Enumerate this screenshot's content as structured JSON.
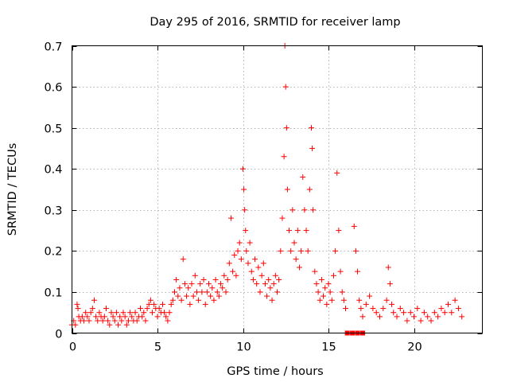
{
  "chart_data": {
    "type": "scatter",
    "title": "Day 295 of 2016, SRMTID for receiver lamp",
    "xlabel": "GPS time / hours",
    "ylabel": "SRMTID / TECUs",
    "xlim": [
      0,
      24
    ],
    "ylim": [
      0,
      0.7
    ],
    "xticks": [
      0,
      5,
      10,
      15,
      20
    ],
    "yticks": [
      0,
      0.1,
      0.2,
      0.3,
      0.4,
      0.5,
      0.6,
      0.7
    ],
    "xtick_labels": [
      "0",
      "5",
      "10",
      "15",
      "20"
    ],
    "ytick_labels": [
      "0",
      "0.1",
      "0.2",
      "0.3",
      "0.4",
      "0.5",
      "0.6",
      "0.7"
    ],
    "grid": true,
    "marker": "+",
    "color": "#ff0000",
    "series": [
      {
        "name": "SRMTID",
        "points": [
          [
            0.0,
            0.02
          ],
          [
            0.1,
            0.03
          ],
          [
            0.2,
            0.02
          ],
          [
            0.3,
            0.07
          ],
          [
            0.35,
            0.06
          ],
          [
            0.4,
            0.04
          ],
          [
            0.5,
            0.03
          ],
          [
            0.6,
            0.04
          ],
          [
            0.7,
            0.03
          ],
          [
            0.8,
            0.05
          ],
          [
            0.9,
            0.04
          ],
          [
            1.0,
            0.03
          ],
          [
            1.1,
            0.05
          ],
          [
            1.2,
            0.06
          ],
          [
            1.3,
            0.08
          ],
          [
            1.4,
            0.04
          ],
          [
            1.5,
            0.03
          ],
          [
            1.6,
            0.05
          ],
          [
            1.7,
            0.04
          ],
          [
            1.8,
            0.03
          ],
          [
            1.9,
            0.04
          ],
          [
            2.0,
            0.06
          ],
          [
            2.1,
            0.03
          ],
          [
            2.2,
            0.02
          ],
          [
            2.3,
            0.05
          ],
          [
            2.4,
            0.04
          ],
          [
            2.5,
            0.03
          ],
          [
            2.6,
            0.05
          ],
          [
            2.7,
            0.02
          ],
          [
            2.8,
            0.04
          ],
          [
            2.9,
            0.03
          ],
          [
            3.0,
            0.05
          ],
          [
            3.1,
            0.04
          ],
          [
            3.2,
            0.02
          ],
          [
            3.3,
            0.03
          ],
          [
            3.4,
            0.05
          ],
          [
            3.5,
            0.04
          ],
          [
            3.6,
            0.03
          ],
          [
            3.7,
            0.05
          ],
          [
            3.8,
            0.03
          ],
          [
            3.9,
            0.04
          ],
          [
            4.0,
            0.06
          ],
          [
            4.1,
            0.04
          ],
          [
            4.2,
            0.05
          ],
          [
            4.3,
            0.03
          ],
          [
            4.4,
            0.06
          ],
          [
            4.5,
            0.07
          ],
          [
            4.6,
            0.08
          ],
          [
            4.7,
            0.05
          ],
          [
            4.8,
            0.07
          ],
          [
            4.9,
            0.06
          ],
          [
            5.0,
            0.04
          ],
          [
            5.1,
            0.06
          ],
          [
            5.2,
            0.05
          ],
          [
            5.3,
            0.07
          ],
          [
            5.4,
            0.05
          ],
          [
            5.5,
            0.04
          ],
          [
            5.6,
            0.03
          ],
          [
            5.7,
            0.05
          ],
          [
            5.8,
            0.07
          ],
          [
            5.9,
            0.08
          ],
          [
            6.0,
            0.1
          ],
          [
            6.1,
            0.13
          ],
          [
            6.2,
            0.09
          ],
          [
            6.3,
            0.11
          ],
          [
            6.4,
            0.08
          ],
          [
            6.5,
            0.18
          ],
          [
            6.6,
            0.12
          ],
          [
            6.7,
            0.09
          ],
          [
            6.8,
            0.11
          ],
          [
            6.9,
            0.07
          ],
          [
            7.0,
            0.12
          ],
          [
            7.1,
            0.09
          ],
          [
            7.2,
            0.14
          ],
          [
            7.3,
            0.1
          ],
          [
            7.4,
            0.08
          ],
          [
            7.5,
            0.12
          ],
          [
            7.6,
            0.1
          ],
          [
            7.7,
            0.13
          ],
          [
            7.8,
            0.07
          ],
          [
            7.9,
            0.1
          ],
          [
            8.0,
            0.12
          ],
          [
            8.1,
            0.09
          ],
          [
            8.2,
            0.11
          ],
          [
            8.3,
            0.08
          ],
          [
            8.4,
            0.13
          ],
          [
            8.5,
            0.1
          ],
          [
            8.6,
            0.09
          ],
          [
            8.7,
            0.12
          ],
          [
            8.8,
            0.11
          ],
          [
            8.9,
            0.14
          ],
          [
            9.0,
            0.1
          ],
          [
            9.1,
            0.13
          ],
          [
            9.2,
            0.17
          ],
          [
            9.3,
            0.28
          ],
          [
            9.4,
            0.15
          ],
          [
            9.5,
            0.19
          ],
          [
            9.6,
            0.14
          ],
          [
            9.7,
            0.2
          ],
          [
            9.8,
            0.22
          ],
          [
            9.9,
            0.18
          ],
          [
            10.0,
            0.4
          ],
          [
            10.05,
            0.35
          ],
          [
            10.1,
            0.3
          ],
          [
            10.15,
            0.25
          ],
          [
            10.2,
            0.2
          ],
          [
            10.3,
            0.17
          ],
          [
            10.4,
            0.22
          ],
          [
            10.5,
            0.15
          ],
          [
            10.6,
            0.13
          ],
          [
            10.7,
            0.18
          ],
          [
            10.8,
            0.12
          ],
          [
            10.9,
            0.16
          ],
          [
            11.0,
            0.1
          ],
          [
            11.1,
            0.14
          ],
          [
            11.2,
            0.17
          ],
          [
            11.3,
            0.12
          ],
          [
            11.4,
            0.09
          ],
          [
            11.5,
            0.13
          ],
          [
            11.6,
            0.11
          ],
          [
            11.7,
            0.08
          ],
          [
            11.8,
            0.12
          ],
          [
            11.9,
            0.14
          ],
          [
            12.0,
            0.1
          ],
          [
            12.1,
            0.13
          ],
          [
            12.2,
            0.2
          ],
          [
            12.3,
            0.28
          ],
          [
            12.4,
            0.43
          ],
          [
            12.45,
            0.7
          ],
          [
            12.5,
            0.6
          ],
          [
            12.55,
            0.5
          ],
          [
            12.6,
            0.35
          ],
          [
            12.7,
            0.25
          ],
          [
            12.8,
            0.2
          ],
          [
            12.9,
            0.3
          ],
          [
            13.0,
            0.22
          ],
          [
            13.1,
            0.18
          ],
          [
            13.2,
            0.25
          ],
          [
            13.3,
            0.16
          ],
          [
            13.4,
            0.2
          ],
          [
            13.5,
            0.38
          ],
          [
            13.6,
            0.3
          ],
          [
            13.7,
            0.25
          ],
          [
            13.8,
            0.2
          ],
          [
            13.9,
            0.35
          ],
          [
            14.0,
            0.5
          ],
          [
            14.05,
            0.45
          ],
          [
            14.1,
            0.3
          ],
          [
            14.2,
            0.15
          ],
          [
            14.3,
            0.12
          ],
          [
            14.4,
            0.1
          ],
          [
            14.5,
            0.08
          ],
          [
            14.6,
            0.13
          ],
          [
            14.7,
            0.09
          ],
          [
            14.8,
            0.11
          ],
          [
            14.9,
            0.07
          ],
          [
            15.0,
            0.12
          ],
          [
            15.1,
            0.1
          ],
          [
            15.2,
            0.08
          ],
          [
            15.3,
            0.14
          ],
          [
            15.4,
            0.2
          ],
          [
            15.5,
            0.39
          ],
          [
            15.6,
            0.25
          ],
          [
            15.7,
            0.15
          ],
          [
            15.8,
            0.1
          ],
          [
            15.9,
            0.08
          ],
          [
            16.0,
            0.06
          ],
          [
            16.5,
            0.26
          ],
          [
            16.6,
            0.2
          ],
          [
            16.7,
            0.15
          ],
          [
            16.8,
            0.08
          ],
          [
            16.9,
            0.06
          ],
          [
            17.0,
            0.04
          ],
          [
            17.2,
            0.07
          ],
          [
            17.4,
            0.09
          ],
          [
            17.6,
            0.06
          ],
          [
            17.8,
            0.05
          ],
          [
            18.0,
            0.04
          ],
          [
            18.2,
            0.06
          ],
          [
            18.4,
            0.08
          ],
          [
            18.5,
            0.16
          ],
          [
            18.6,
            0.12
          ],
          [
            18.7,
            0.07
          ],
          [
            18.8,
            0.05
          ],
          [
            19.0,
            0.04
          ],
          [
            19.2,
            0.06
          ],
          [
            19.4,
            0.05
          ],
          [
            19.6,
            0.03
          ],
          [
            19.8,
            0.05
          ],
          [
            20.0,
            0.04
          ],
          [
            20.2,
            0.06
          ],
          [
            20.4,
            0.03
          ],
          [
            20.6,
            0.05
          ],
          [
            20.8,
            0.04
          ],
          [
            21.0,
            0.03
          ],
          [
            21.2,
            0.05
          ],
          [
            21.4,
            0.04
          ],
          [
            21.6,
            0.06
          ],
          [
            21.8,
            0.05
          ],
          [
            22.0,
            0.07
          ],
          [
            22.2,
            0.05
          ],
          [
            22.4,
            0.08
          ],
          [
            22.6,
            0.06
          ],
          [
            22.8,
            0.04
          ]
        ]
      },
      {
        "name": "zero-value markers",
        "points": [
          [
            16.1,
            0
          ],
          [
            16.4,
            0
          ],
          [
            16.7,
            0
          ],
          [
            17.0,
            0
          ]
        ]
      }
    ]
  }
}
